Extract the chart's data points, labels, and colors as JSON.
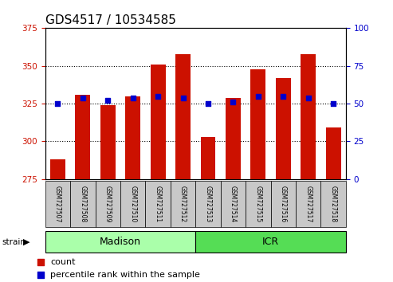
{
  "title": "GDS4517 / 10534585",
  "samples": [
    "GSM727507",
    "GSM727508",
    "GSM727509",
    "GSM727510",
    "GSM727511",
    "GSM727512",
    "GSM727513",
    "GSM727514",
    "GSM727515",
    "GSM727516",
    "GSM727517",
    "GSM727518"
  ],
  "counts": [
    288,
    331,
    324,
    330,
    351,
    358,
    303,
    329,
    348,
    342,
    358,
    309
  ],
  "percentiles": [
    50,
    54,
    52,
    54,
    55,
    54,
    50,
    51,
    55,
    55,
    54,
    50
  ],
  "groups": [
    {
      "name": "Madison",
      "start": 0,
      "end": 6
    },
    {
      "name": "ICR",
      "start": 6,
      "end": 12
    }
  ],
  "group_colors": [
    "#AAFFAA",
    "#55DD55"
  ],
  "ylim_left": [
    275,
    375
  ],
  "ylim_right": [
    0,
    100
  ],
  "yticks_left": [
    275,
    300,
    325,
    350,
    375
  ],
  "yticks_right": [
    0,
    25,
    50,
    75,
    100
  ],
  "bar_color": "#CC1100",
  "percentile_color": "#0000CC",
  "bar_width": 0.6,
  "title_fontsize": 11,
  "tick_label_color_left": "#CC1100",
  "tick_label_color_right": "#0000CC",
  "strain_label": "strain"
}
